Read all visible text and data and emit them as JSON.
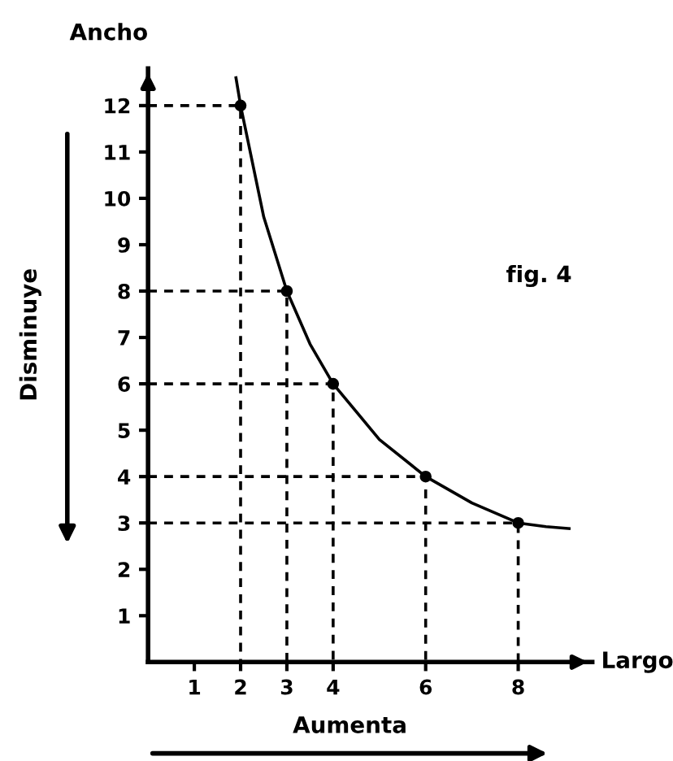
{
  "chart_data": {
    "type": "line",
    "xlabel": "Largo",
    "ylabel": "Ancho",
    "xlim": [
      0,
      9.6
    ],
    "ylim": [
      0,
      12.8
    ],
    "xticks": [
      1,
      2,
      3,
      4,
      6,
      8
    ],
    "yticks": [
      1,
      2,
      3,
      4,
      5,
      6,
      7,
      8,
      9,
      10,
      11,
      12
    ],
    "grid": false,
    "legend": false,
    "series": [
      {
        "color": "#000000",
        "x": [
          1.9,
          2,
          2.5,
          3,
          3.5,
          4,
          5,
          6,
          7,
          8,
          8.6,
          9.1
        ],
        "values": [
          12.6,
          12,
          9.6,
          8,
          6.86,
          6,
          4.8,
          4,
          3.43,
          3,
          2.92,
          2.88
        ],
        "line_style": "solid",
        "marker": "none"
      },
      {
        "type": "scatter",
        "color": "#000000",
        "x": [
          2,
          3,
          4,
          6,
          8
        ],
        "values": [
          12,
          8,
          6,
          4,
          3
        ],
        "marker": "circle"
      },
      {
        "color": "#000000",
        "x": [
          0,
          2,
          2
        ],
        "values": [
          12,
          12,
          0
        ],
        "line_style": "dashed",
        "marker": "none"
      },
      {
        "color": "#000000",
        "x": [
          0,
          3,
          3
        ],
        "values": [
          8,
          8,
          0
        ],
        "line_style": "dashed",
        "marker": "none"
      },
      {
        "color": "#000000",
        "x": [
          0,
          4,
          4
        ],
        "values": [
          6,
          6,
          0
        ],
        "line_style": "dashed",
        "marker": "none"
      },
      {
        "color": "#000000",
        "x": [
          0,
          6,
          6
        ],
        "values": [
          4,
          4,
          0
        ],
        "line_style": "dashed",
        "marker": "none"
      },
      {
        "color": "#000000",
        "x": [
          0,
          8,
          8
        ],
        "values": [
          3,
          3,
          0
        ],
        "line_style": "dashed",
        "marker": "none"
      }
    ],
    "annotations": [
      "fig. 4",
      "Disminuye",
      "Aumenta"
    ]
  }
}
